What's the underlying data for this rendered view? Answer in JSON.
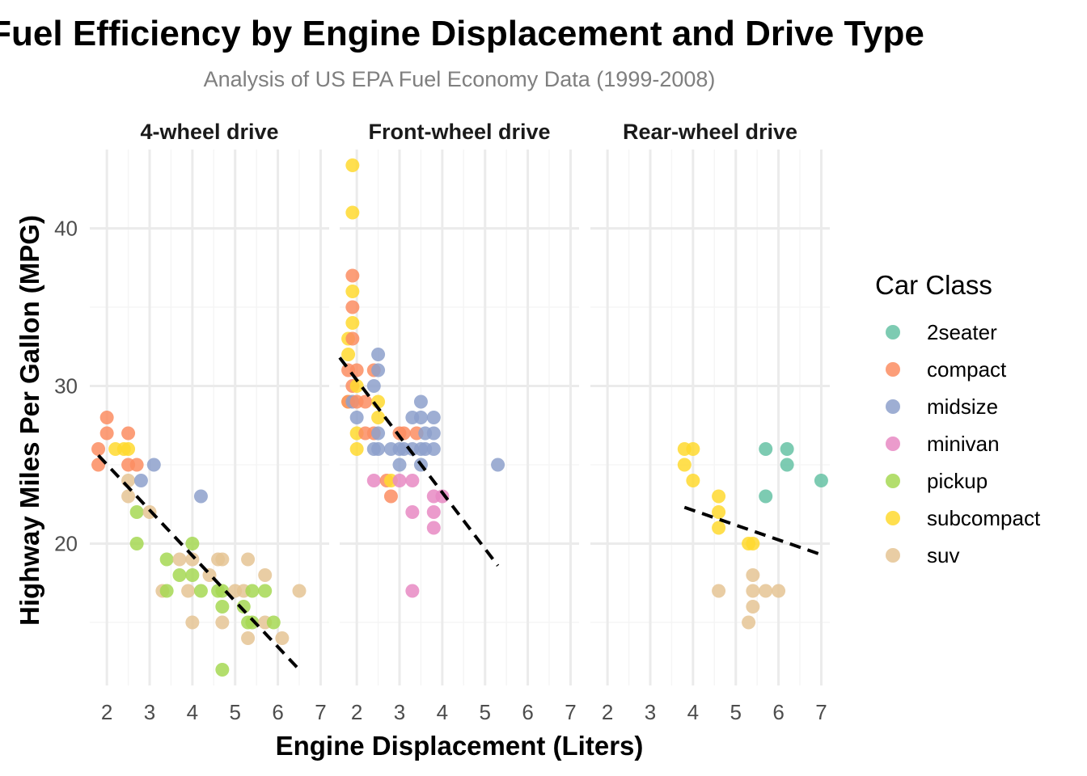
{
  "chart_data": {
    "type": "scatter",
    "title": "Fuel Efficiency by Engine Displacement and Drive Type",
    "subtitle": "Analysis of US EPA Fuel Economy Data (1999-2008)",
    "xlabel": "Engine Displacement (Liters)",
    "ylabel": "Highway Miles Per Gallon (MPG)",
    "xlim": [
      1.6,
      7.2
    ],
    "ylim": [
      11,
      45
    ],
    "x_ticks": [
      "2",
      "3",
      "4",
      "5",
      "6",
      "7"
    ],
    "y_ticks": [
      "20",
      "30",
      "40"
    ],
    "grid": true,
    "legend": {
      "title": "Car Class",
      "placement": "right",
      "entries": [
        "2seater",
        "compact",
        "midsize",
        "minivan",
        "pickup",
        "subcompact",
        "suv"
      ]
    },
    "colors": {
      "2seater": "#66C2A5",
      "compact": "#FC8D62",
      "midsize": "#8DA0CB",
      "minivan": "#E78AC3",
      "pickup": "#A6D854",
      "subcompact": "#FFD92F",
      "suv": "#E5C494",
      "trend": "#000000"
    },
    "panels": [
      {
        "label": "4-wheel drive",
        "trend": [
          [
            1.8,
            25.6
          ],
          [
            6.5,
            12.0
          ]
        ],
        "points": [
          [
            1.8,
            26,
            "compact"
          ],
          [
            1.8,
            25,
            "compact"
          ],
          [
            2.0,
            28,
            "compact"
          ],
          [
            2.0,
            27,
            "compact"
          ],
          [
            2.2,
            26,
            "subcompact"
          ],
          [
            2.4,
            26,
            "subcompact"
          ],
          [
            2.5,
            26,
            "subcompact"
          ],
          [
            2.5,
            27,
            "compact"
          ],
          [
            2.5,
            25,
            "compact"
          ],
          [
            2.7,
            25,
            "compact"
          ],
          [
            2.5,
            24,
            "suv"
          ],
          [
            2.5,
            23,
            "suv"
          ],
          [
            2.8,
            24,
            "midsize"
          ],
          [
            3.1,
            25,
            "midsize"
          ],
          [
            2.7,
            22,
            "pickup"
          ],
          [
            2.7,
            20,
            "pickup"
          ],
          [
            3.0,
            22,
            "suv"
          ],
          [
            3.3,
            17,
            "suv"
          ],
          [
            3.4,
            17,
            "pickup"
          ],
          [
            3.4,
            19,
            "pickup"
          ],
          [
            3.7,
            18,
            "pickup"
          ],
          [
            3.7,
            19,
            "suv"
          ],
          [
            3.9,
            17,
            "suv"
          ],
          [
            4.0,
            15,
            "suv"
          ],
          [
            4.0,
            20,
            "pickup"
          ],
          [
            4.0,
            19,
            "suv"
          ],
          [
            4.0,
            18,
            "pickup"
          ],
          [
            4.2,
            17,
            "pickup"
          ],
          [
            4.2,
            23,
            "midsize"
          ],
          [
            4.4,
            18,
            "suv"
          ],
          [
            4.6,
            17,
            "pickup"
          ],
          [
            4.6,
            19,
            "suv"
          ],
          [
            4.7,
            19,
            "suv"
          ],
          [
            4.7,
            17,
            "pickup"
          ],
          [
            4.7,
            16,
            "pickup"
          ],
          [
            4.7,
            15,
            "suv"
          ],
          [
            4.7,
            12,
            "pickup"
          ],
          [
            5.0,
            17,
            "suv"
          ],
          [
            5.2,
            17,
            "suv"
          ],
          [
            5.2,
            16,
            "pickup"
          ],
          [
            5.3,
            19,
            "suv"
          ],
          [
            5.3,
            15,
            "pickup"
          ],
          [
            5.3,
            14,
            "suv"
          ],
          [
            5.4,
            15,
            "pickup"
          ],
          [
            5.4,
            17,
            "pickup"
          ],
          [
            5.7,
            18,
            "suv"
          ],
          [
            5.7,
            17,
            "pickup"
          ],
          [
            5.7,
            15,
            "suv"
          ],
          [
            5.9,
            15,
            "pickup"
          ],
          [
            6.1,
            14,
            "suv"
          ],
          [
            6.5,
            17,
            "suv"
          ]
        ]
      },
      {
        "label": "Front-wheel drive",
        "trend": [
          [
            1.6,
            31.8
          ],
          [
            5.3,
            18.6
          ]
        ],
        "points": [
          [
            1.8,
            33,
            "subcompact"
          ],
          [
            1.8,
            32,
            "subcompact"
          ],
          [
            1.8,
            29,
            "subcompact"
          ],
          [
            1.8,
            29,
            "compact"
          ],
          [
            1.8,
            31,
            "compact"
          ],
          [
            1.9,
            44,
            "subcompact"
          ],
          [
            1.9,
            41,
            "subcompact"
          ],
          [
            1.9,
            37,
            "compact"
          ],
          [
            1.9,
            36,
            "subcompact"
          ],
          [
            1.9,
            35,
            "compact"
          ],
          [
            1.9,
            34,
            "subcompact"
          ],
          [
            1.9,
            33,
            "compact"
          ],
          [
            1.9,
            30,
            "compact"
          ],
          [
            1.9,
            29,
            "midsize"
          ],
          [
            2.0,
            29,
            "compact"
          ],
          [
            2.0,
            28,
            "midsize"
          ],
          [
            2.0,
            27,
            "subcompact"
          ],
          [
            2.0,
            26,
            "subcompact"
          ],
          [
            2.0,
            31,
            "compact"
          ],
          [
            2.0,
            30,
            "subcompact"
          ],
          [
            2.2,
            27,
            "compact"
          ],
          [
            2.2,
            29,
            "compact"
          ],
          [
            2.4,
            30,
            "midsize"
          ],
          [
            2.4,
            31,
            "compact"
          ],
          [
            2.4,
            27,
            "compact"
          ],
          [
            2.4,
            26,
            "midsize"
          ],
          [
            2.4,
            24,
            "minivan"
          ],
          [
            2.5,
            32,
            "midsize"
          ],
          [
            2.5,
            31,
            "midsize"
          ],
          [
            2.5,
            29,
            "subcompact"
          ],
          [
            2.5,
            28,
            "subcompact"
          ],
          [
            2.5,
            27,
            "midsize"
          ],
          [
            2.5,
            26,
            "midsize"
          ],
          [
            2.7,
            24,
            "compact"
          ],
          [
            2.8,
            23,
            "compact"
          ],
          [
            2.8,
            26,
            "midsize"
          ],
          [
            2.8,
            24,
            "subcompact"
          ],
          [
            3.0,
            26,
            "midsize"
          ],
          [
            3.0,
            24,
            "minivan"
          ],
          [
            3.0,
            27,
            "compact"
          ],
          [
            3.1,
            26,
            "midsize"
          ],
          [
            3.1,
            27,
            "compact"
          ],
          [
            3.3,
            28,
            "midsize"
          ],
          [
            3.3,
            24,
            "minivan"
          ],
          [
            3.3,
            22,
            "minivan"
          ],
          [
            3.3,
            17,
            "minivan"
          ],
          [
            3.0,
            25,
            "midsize"
          ],
          [
            3.3,
            26,
            "midsize"
          ],
          [
            3.4,
            27,
            "compact"
          ],
          [
            3.5,
            29,
            "midsize"
          ],
          [
            3.5,
            28,
            "midsize"
          ],
          [
            3.5,
            26,
            "midsize"
          ],
          [
            3.5,
            25,
            "midsize"
          ],
          [
            3.6,
            27,
            "midsize"
          ],
          [
            3.6,
            26,
            "midsize"
          ],
          [
            3.8,
            28,
            "midsize"
          ],
          [
            3.8,
            27,
            "midsize"
          ],
          [
            3.8,
            26,
            "midsize"
          ],
          [
            3.8,
            23,
            "minivan"
          ],
          [
            3.8,
            22,
            "minivan"
          ],
          [
            3.8,
            21,
            "minivan"
          ],
          [
            4.0,
            23,
            "minivan"
          ],
          [
            5.3,
            25,
            "midsize"
          ]
        ]
      },
      {
        "label": "Rear-wheel drive",
        "trend": [
          [
            3.8,
            22.3
          ],
          [
            7.0,
            19.3
          ]
        ],
        "points": [
          [
            3.8,
            26,
            "subcompact"
          ],
          [
            3.8,
            25,
            "subcompact"
          ],
          [
            4.0,
            26,
            "subcompact"
          ],
          [
            4.0,
            24,
            "subcompact"
          ],
          [
            4.6,
            23,
            "subcompact"
          ],
          [
            4.6,
            22,
            "subcompact"
          ],
          [
            4.6,
            21,
            "subcompact"
          ],
          [
            4.6,
            17,
            "suv"
          ],
          [
            5.3,
            20,
            "subcompact"
          ],
          [
            5.4,
            20,
            "subcompact"
          ],
          [
            5.3,
            15,
            "suv"
          ],
          [
            5.4,
            18,
            "suv"
          ],
          [
            5.4,
            17,
            "suv"
          ],
          [
            5.4,
            16,
            "suv"
          ],
          [
            5.7,
            17,
            "suv"
          ],
          [
            6.0,
            17,
            "suv"
          ],
          [
            5.7,
            26,
            "2seater"
          ],
          [
            5.7,
            23,
            "2seater"
          ],
          [
            6.2,
            26,
            "2seater"
          ],
          [
            6.2,
            25,
            "2seater"
          ],
          [
            7.0,
            24,
            "2seater"
          ]
        ]
      }
    ]
  }
}
